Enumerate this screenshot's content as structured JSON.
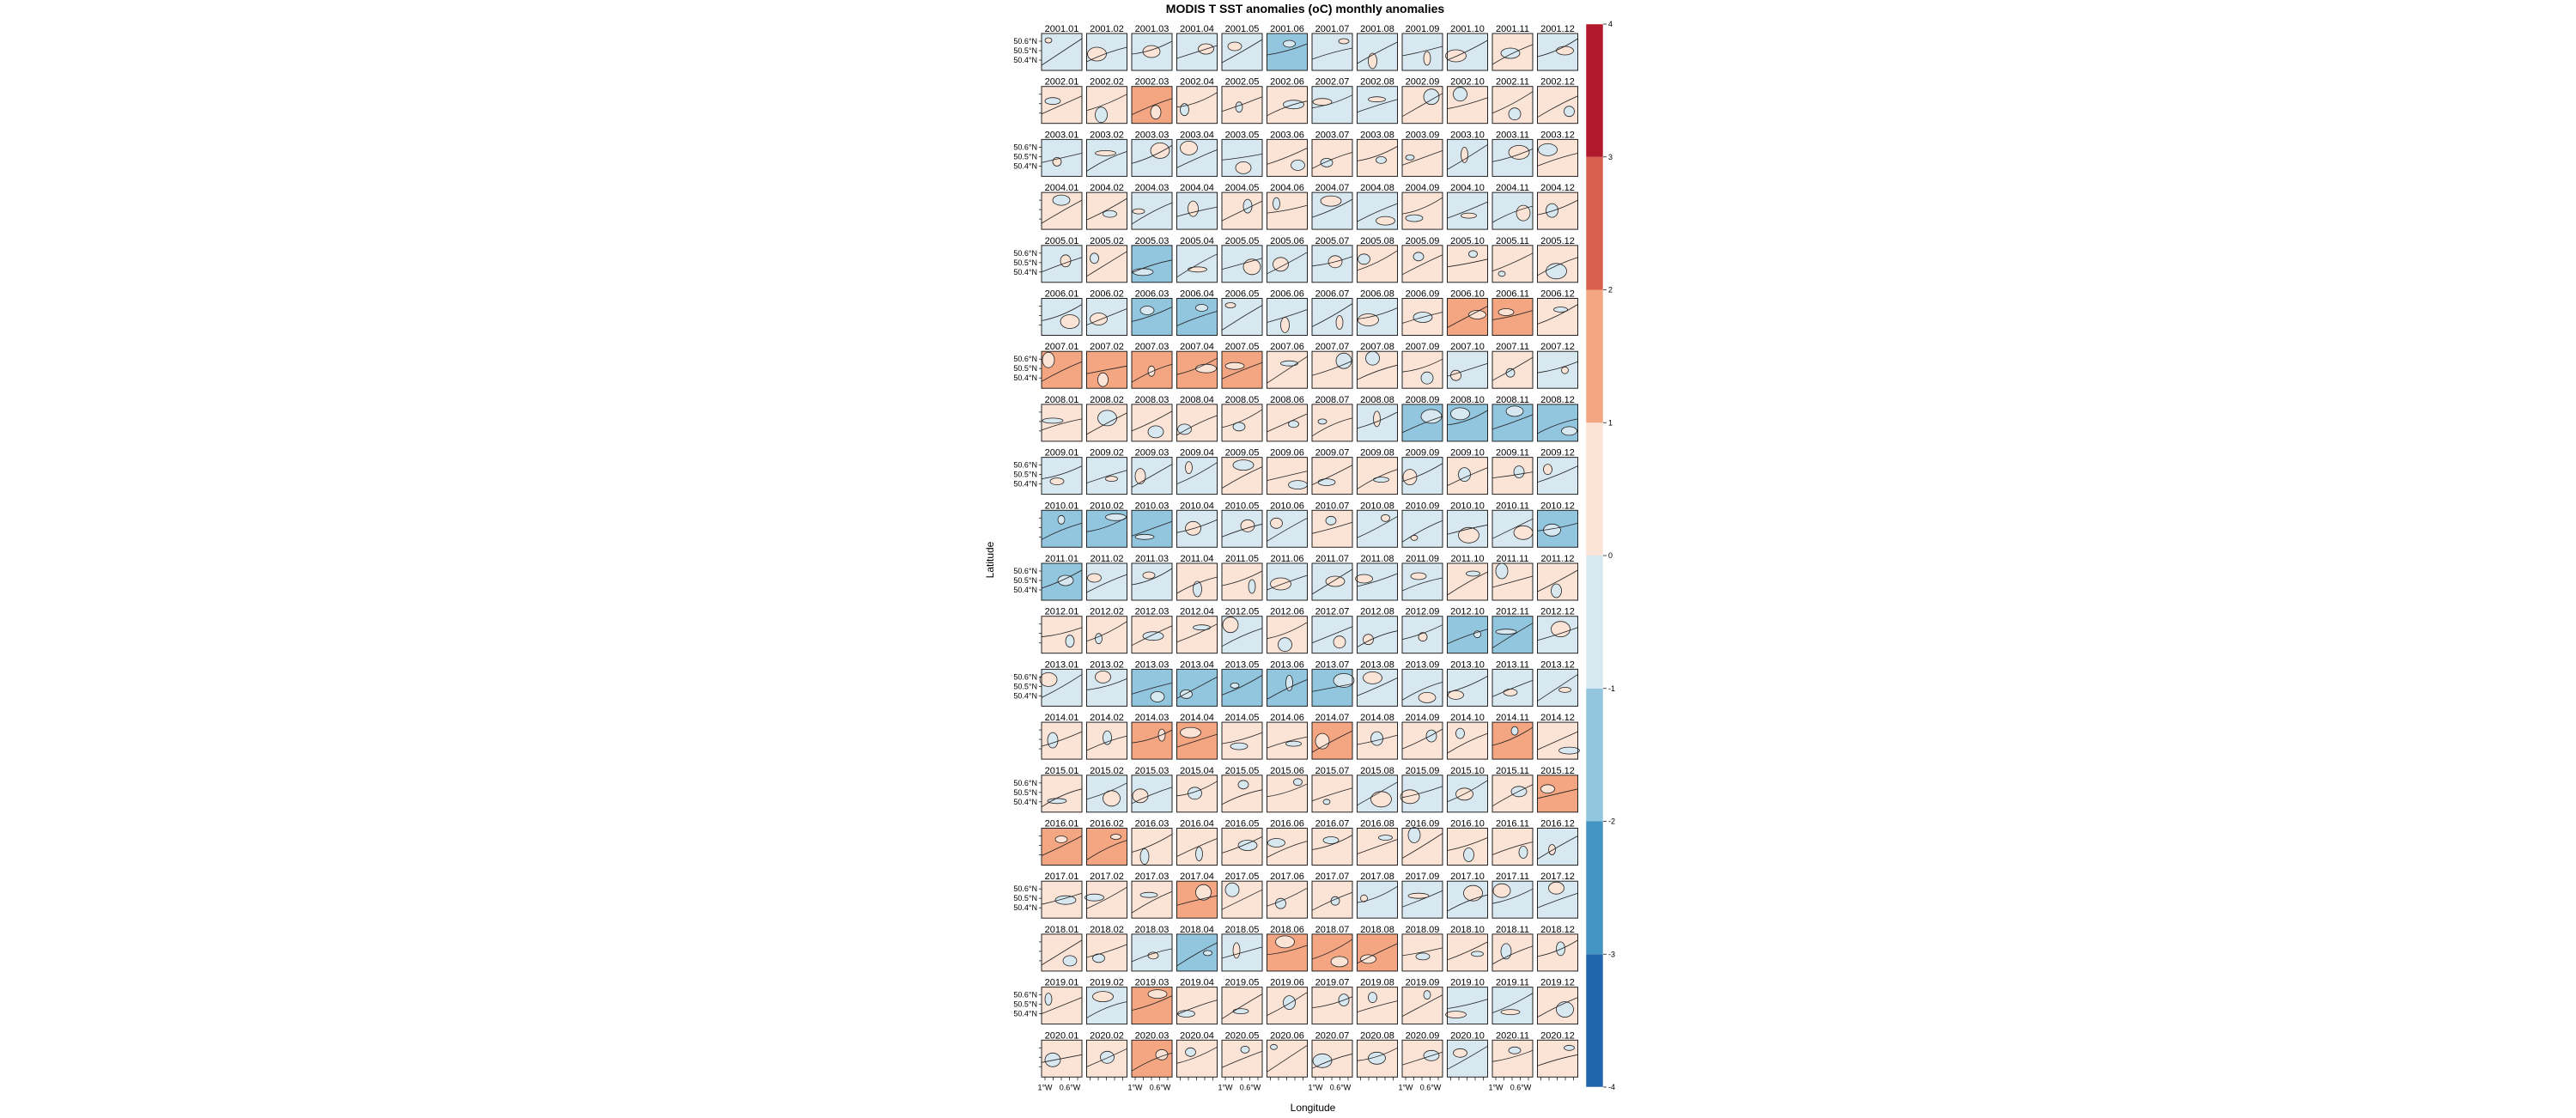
{
  "chart_data": {
    "type": "heatmap",
    "title": "MODIS T SST anomalies (oC) monthly anomalies",
    "xlabel": "Longitude",
    "ylabel": "Latitude",
    "x_tick_labels": [
      "1°W",
      "0.6°W"
    ],
    "y_tick_labels": [
      "50.6°N",
      "50.5°N",
      "50.4°N"
    ],
    "years": [
      "2001",
      "2002",
      "2003",
      "2004",
      "2005",
      "2006",
      "2007",
      "2008",
      "2009",
      "2010",
      "2011",
      "2012",
      "2013",
      "2014",
      "2015",
      "2016",
      "2017",
      "2018",
      "2019",
      "2020"
    ],
    "months": [
      "01",
      "02",
      "03",
      "04",
      "05",
      "06",
      "07",
      "08",
      "09",
      "10",
      "11",
      "12"
    ],
    "colorbar": {
      "range": [
        -4,
        4
      ],
      "ticks": [
        "-4",
        "-3",
        "-2",
        "-1",
        "0",
        "1",
        "2",
        "3",
        "4"
      ],
      "bins": [
        {
          "from": -4,
          "to": -3,
          "color": "#2166ac"
        },
        {
          "from": -3,
          "to": -2,
          "color": "#4393c3"
        },
        {
          "from": -2,
          "to": -1,
          "color": "#92c5de"
        },
        {
          "from": -1,
          "to": 0,
          "color": "#d8e8f1"
        },
        {
          "from": 0,
          "to": 1,
          "color": "#fbe3d6"
        },
        {
          "from": 1,
          "to": 2,
          "color": "#f4a582"
        },
        {
          "from": 2,
          "to": 3,
          "color": "#d6604d"
        },
        {
          "from": 3,
          "to": 4,
          "color": "#b2182b"
        }
      ]
    },
    "anomalies": [
      [
        -0.5,
        -0.5,
        -0.4,
        -0.4,
        -0.5,
        -1.3,
        -0.3,
        -0.4,
        -0.3,
        -0.4,
        0.5,
        -0.4
      ],
      [
        0.3,
        0.5,
        1.1,
        0.4,
        0.4,
        0.4,
        -0.4,
        -0.3,
        0.4,
        0.4,
        0.4,
        0.4
      ],
      [
        -0.4,
        -0.5,
        -0.4,
        -0.5,
        -0.5,
        0.4,
        0.4,
        0.4,
        0.4,
        -0.6,
        -0.5,
        0.4
      ],
      [
        0.4,
        0.4,
        -0.4,
        -0.4,
        0.4,
        0.4,
        -0.4,
        -0.4,
        0.4,
        -0.6,
        -0.4,
        0.4
      ],
      [
        -0.4,
        0.4,
        -1.1,
        -0.6,
        -0.4,
        -0.4,
        -0.4,
        0.4,
        0.4,
        0.4,
        0.4,
        0.4
      ],
      [
        -0.6,
        -0.6,
        -1.3,
        -1.3,
        -0.6,
        -0.6,
        -0.4,
        -0.4,
        0.4,
        1.1,
        1.1,
        0.6
      ],
      [
        1.2,
        1.3,
        1.3,
        1.1,
        1.1,
        0.4,
        0.4,
        0.4,
        0.4,
        -0.5,
        0.4,
        -0.4
      ],
      [
        0.4,
        0.6,
        0.4,
        0.4,
        0.4,
        0.4,
        0.4,
        -0.4,
        -1.2,
        -1.1,
        -1.2,
        -1.1
      ],
      [
        -0.7,
        -0.6,
        -0.4,
        -0.4,
        0.5,
        0.4,
        0.4,
        0.4,
        -0.4,
        0.4,
        0.4,
        -0.4
      ],
      [
        -1.2,
        -1.1,
        -1.3,
        -0.4,
        -0.6,
        -0.4,
        0.4,
        -0.4,
        -0.4,
        -0.4,
        -0.6,
        -1.3
      ],
      [
        -1.1,
        -0.6,
        -0.4,
        0.5,
        0.5,
        -0.4,
        -0.4,
        -0.4,
        -0.4,
        0.4,
        0.4,
        0.4
      ],
      [
        0.4,
        0.4,
        0.4,
        0.4,
        -0.4,
        0.4,
        -0.4,
        -0.4,
        -0.4,
        -1.1,
        -1.2,
        -0.4
      ],
      [
        -0.4,
        -0.4,
        -1.2,
        -1.6,
        -1.5,
        -1.3,
        -1.2,
        -0.4,
        -0.4,
        -0.6,
        -0.4,
        -0.4
      ],
      [
        0.4,
        0.6,
        1.1,
        1.1,
        0.6,
        0.6,
        1.1,
        0.4,
        0.4,
        0.5,
        1.0,
        0.4
      ],
      [
        0.4,
        -0.4,
        -0.4,
        0.4,
        0.4,
        0.4,
        0.4,
        -0.4,
        -0.4,
        -0.4,
        0.4,
        1.5
      ],
      [
        1.2,
        1.3,
        0.4,
        0.4,
        0.4,
        0.4,
        0.4,
        0.4,
        0.6,
        0.4,
        0.4,
        -0.4
      ],
      [
        0.4,
        0.4,
        0.4,
        1.3,
        0.4,
        0.4,
        0.4,
        -0.4,
        -0.4,
        -0.4,
        -0.4,
        -0.4
      ],
      [
        0.4,
        0.4,
        -1.0,
        -1.1,
        -0.4,
        1.1,
        1.1,
        1.2,
        0.4,
        0.4,
        0.4,
        0.4
      ],
      [
        0.4,
        -0.4,
        1.2,
        0.4,
        0.4,
        0.4,
        0.4,
        0.4,
        0.4,
        -0.4,
        -0.4,
        0.4
      ],
      [
        0.4,
        0.6,
        1.3,
        0.4,
        0.4,
        0.4,
        0.4,
        0.4,
        0.4,
        -0.4,
        0.4,
        0.4
      ]
    ]
  }
}
